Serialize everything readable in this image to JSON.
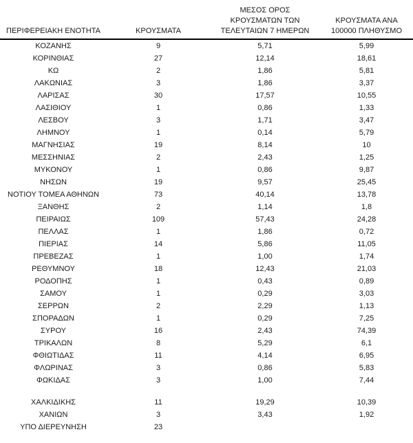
{
  "colors": {
    "background": "#ffffff",
    "text": "#1a1a1a",
    "header_rule": "#000000"
  },
  "table": {
    "columns": [
      {
        "id": "region",
        "header_lines": [
          "ΠΕΡΙΦΕΡΕΙΑΚΗ ΕΝΟΤΗΤΑ"
        ]
      },
      {
        "id": "cases",
        "header_lines": [
          "ΚΡΟΥΣΜΑΤΑ"
        ]
      },
      {
        "id": "avg7",
        "header_lines": [
          "ΜΕΣΟΣ ΟΡΟΣ",
          "ΚΡΟΥΣΜΑΤΩΝ ΤΩΝ",
          "ΤΕΛΕΥΤΑΙΩΝ 7 ΗΜΕΡΩΝ"
        ]
      },
      {
        "id": "per100k",
        "header_lines": [
          "ΚΡΟΥΣΜΑΤΑ ΑΝΑ",
          "100000 ΠΛΗΘΥΣΜΟ"
        ]
      }
    ],
    "rows": [
      {
        "cells": [
          "ΚΟΖΑΝΗΣ",
          "9",
          "5,71",
          "5,99"
        ]
      },
      {
        "cells": [
          "ΚΟΡΙΝΘΙΑΣ",
          "27",
          "12,14",
          "18,61"
        ]
      },
      {
        "cells": [
          "ΚΩ",
          "2",
          "1,86",
          "5,81"
        ]
      },
      {
        "cells": [
          "ΛΑΚΩΝΙΑΣ",
          "3",
          "1,86",
          "3,37"
        ]
      },
      {
        "cells": [
          "ΛΑΡΙΣΑΣ",
          "30",
          "17,57",
          "10,55"
        ]
      },
      {
        "cells": [
          "ΛΑΣΙΘΙΟΥ",
          "1",
          "0,86",
          "1,33"
        ]
      },
      {
        "cells": [
          "ΛΕΣΒΟΥ",
          "3",
          "1,71",
          "3,47"
        ]
      },
      {
        "cells": [
          "ΛΗΜΝΟΥ",
          "1",
          "0,14",
          "5,79"
        ]
      },
      {
        "cells": [
          "ΜΑΓΝΗΣΙΑΣ",
          "19",
          "8,14",
          "10"
        ]
      },
      {
        "cells": [
          "ΜΕΣΣΗΝΙΑΣ",
          "2",
          "2,43",
          "1,25"
        ]
      },
      {
        "cells": [
          "ΜΥΚΟΝΟΥ",
          "1",
          "0,86",
          "9,87"
        ]
      },
      {
        "cells": [
          "ΝΗΣΩΝ",
          "19",
          "9,57",
          "25,45"
        ]
      },
      {
        "cells": [
          "ΝΟΤΙΟΥ ΤΟΜΕΑ ΑΘΗΝΩΝ",
          "73",
          "40,14",
          "13,78"
        ]
      },
      {
        "cells": [
          "ΞΑΝΘΗΣ",
          "2",
          "1,14",
          "1,8"
        ]
      },
      {
        "cells": [
          "ΠΕΙΡΑΙΩΣ",
          "109",
          "57,43",
          "24,28"
        ]
      },
      {
        "cells": [
          "ΠΕΛΛΑΣ",
          "1",
          "1,86",
          "0,72"
        ]
      },
      {
        "cells": [
          "ΠΙΕΡΙΑΣ",
          "14",
          "5,86",
          "11,05"
        ]
      },
      {
        "cells": [
          "ΠΡΕΒΕΖΑΣ",
          "1",
          "1,00",
          "1,74"
        ]
      },
      {
        "cells": [
          "ΡΕΘΥΜΝΟΥ",
          "18",
          "12,43",
          "21,03"
        ]
      },
      {
        "cells": [
          "ΡΟΔΟΠΗΣ",
          "1",
          "0,43",
          "0,89"
        ]
      },
      {
        "cells": [
          "ΣΑΜΟΥ",
          "1",
          "0,29",
          "3,03"
        ]
      },
      {
        "cells": [
          "ΣΕΡΡΩΝ",
          "2",
          "2,29",
          "1,13"
        ]
      },
      {
        "cells": [
          "ΣΠΟΡΑΔΩΝ",
          "1",
          "0,29",
          "7,25"
        ]
      },
      {
        "cells": [
          "ΣΥΡΟΥ",
          "16",
          "2,43",
          "74,39"
        ]
      },
      {
        "cells": [
          "ΤΡΙΚΑΛΩΝ",
          "8",
          "5,29",
          "6,1"
        ]
      },
      {
        "cells": [
          "ΦΘΙΩΤΙΔΑΣ",
          "11",
          "4,14",
          "6,95"
        ]
      },
      {
        "cells": [
          "ΦΛΩΡΙΝΑΣ",
          "3",
          "0,86",
          "5,83"
        ]
      },
      {
        "cells": [
          "ΦΩΚΙΔΑΣ",
          "3",
          "1,00",
          "7,44"
        ]
      },
      {
        "spacer": true
      },
      {
        "cells": [
          "ΧΑΛΚΙΔΙΚΗΣ",
          "11",
          "19,29",
          "10,39"
        ]
      },
      {
        "cells": [
          "ΧΑΝΙΩΝ",
          "3",
          "3,43",
          "1,92"
        ]
      },
      {
        "cells": [
          "ΥΠΟ ΔΙΕΡΕΥΝΗΣΗ",
          "23",
          "",
          ""
        ]
      }
    ]
  }
}
